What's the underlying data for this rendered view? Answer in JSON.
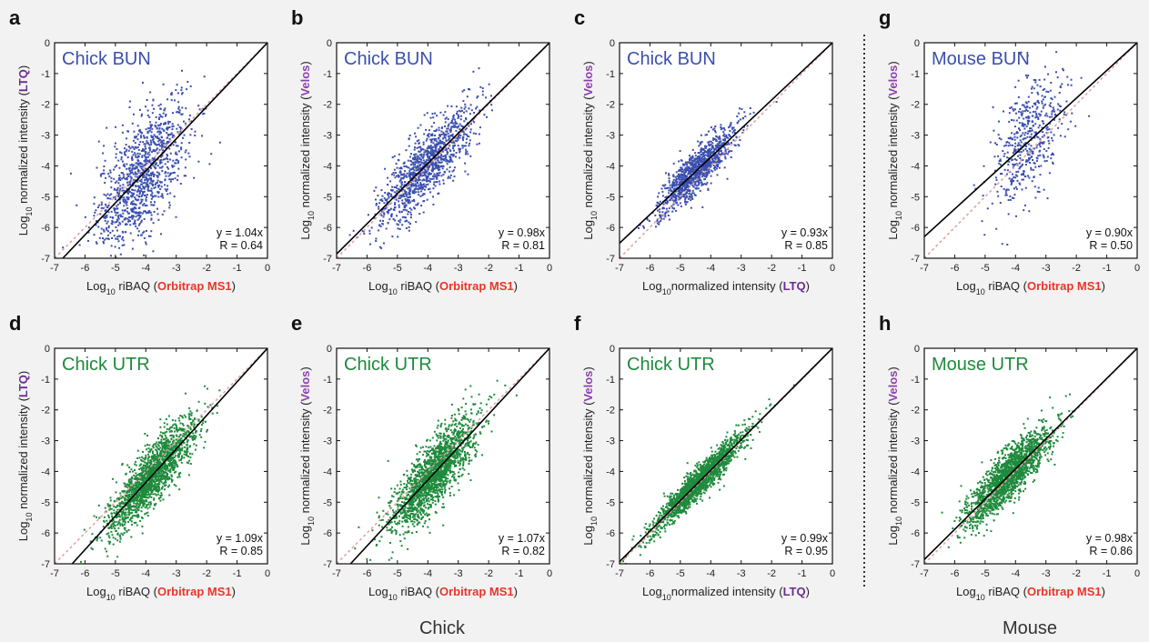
{
  "colors": {
    "blue": "#3b4fae",
    "green": "#1e8a3c",
    "orbitrap": "#e8362a",
    "velos": "#8e3fae",
    "ltq": "#6a2d8f",
    "fit_line": "#000000",
    "identity_line": "#e0a4a4"
  },
  "groups": [
    {
      "label": "Chick"
    },
    {
      "label": "Mouse"
    }
  ],
  "chart_data": [
    {
      "type": "scatter",
      "panel": "a",
      "title": "Chick BUN",
      "color": "blue",
      "xlabel": {
        "pre": "Log",
        "sub": "10",
        "mid": " riBAQ (",
        "hl": "Orbitrap MS1",
        "post": ")"
      },
      "ylabel": {
        "pre": "Log",
        "sub": "10",
        "mid": " normalized intensity (",
        "hl": "LTQ",
        "post": ")"
      },
      "xlim": [
        -7,
        0
      ],
      "ylim": [
        -7,
        0
      ],
      "x_ticks": [
        -7,
        -6,
        -5,
        -4,
        -3,
        -2,
        -1,
        0
      ],
      "y_ticks": [
        -7,
        -6,
        -5,
        -4,
        -3,
        -2,
        -1,
        0
      ],
      "fit_text": "y = 1.04x",
      "r_text": "R = 0.64",
      "slope": 1.04,
      "r": 0.64,
      "n_points": 1100,
      "x_mean": -4.1,
      "x_sd": 0.75
    },
    {
      "type": "scatter",
      "panel": "b",
      "title": "Chick BUN",
      "color": "blue",
      "xlabel": {
        "pre": "Log",
        "sub": "10",
        "mid": " riBAQ (",
        "hl": "Orbitrap MS1",
        "post": ")"
      },
      "ylabel": {
        "pre": "Log",
        "sub": "10",
        "mid": " normalized intensity (",
        "hl": "Velos",
        "post": ")"
      },
      "xlim": [
        -7,
        0
      ],
      "ylim": [
        -7,
        0
      ],
      "x_ticks": [
        -7,
        -6,
        -5,
        -4,
        -3,
        -2,
        -1,
        0
      ],
      "y_ticks": [
        -7,
        -6,
        -5,
        -4,
        -3,
        -2,
        -1,
        0
      ],
      "fit_text": "y = 0.98x",
      "r_text": "R = 0.81",
      "slope": 0.98,
      "r": 0.81,
      "n_points": 1100,
      "x_mean": -4.1,
      "x_sd": 0.8
    },
    {
      "type": "scatter",
      "panel": "c",
      "title": "Chick BUN",
      "color": "blue",
      "xlabel": {
        "pre": "Log",
        "sub": "10",
        "mid": "normalized intensity (",
        "hl": "LTQ",
        "post": ")"
      },
      "ylabel": {
        "pre": "Log",
        "sub": "10",
        "mid": " normalized intensity (",
        "hl": "Velos",
        "post": ")"
      },
      "xlim": [
        -7,
        0
      ],
      "ylim": [
        -7,
        0
      ],
      "x_ticks": [
        -7,
        -6,
        -5,
        -4,
        -3,
        -2,
        -1,
        0
      ],
      "y_ticks": [
        -7,
        -6,
        -5,
        -4,
        -3,
        -2,
        -1,
        0
      ],
      "fit_text": "y = 0.93x",
      "r_text": "R = 0.85",
      "slope": 0.93,
      "r": 0.85,
      "n_points": 1100,
      "x_mean": -4.5,
      "x_sd": 0.6
    },
    {
      "type": "scatter",
      "panel": "g",
      "title": "Mouse BUN",
      "color": "blue",
      "xlabel": {
        "pre": "Log",
        "sub": "10",
        "mid": " riBAQ (",
        "hl": "Orbitrap MS1",
        "post": ")"
      },
      "ylabel": {
        "pre": "Log",
        "sub": "10",
        "mid": " normalized intensity (",
        "hl": "Velos",
        "post": ")"
      },
      "xlim": [
        -7,
        0
      ],
      "ylim": [
        -7,
        0
      ],
      "x_ticks": [
        -7,
        -6,
        -5,
        -4,
        -3,
        -2,
        -1,
        0
      ],
      "y_ticks": [
        -7,
        -6,
        -5,
        -4,
        -3,
        -2,
        -1,
        0
      ],
      "fit_text": "y = 0.90x",
      "r_text": "R = 0.50",
      "slope": 0.9,
      "r": 0.5,
      "n_points": 500,
      "x_mean": -3.6,
      "x_sd": 0.6
    },
    {
      "type": "scatter",
      "panel": "d",
      "title": "Chick UTR",
      "color": "green",
      "xlabel": {
        "pre": "Log",
        "sub": "10",
        "mid": " riBAQ (",
        "hl": "Orbitrap MS1",
        "post": ")"
      },
      "ylabel": {
        "pre": "Log",
        "sub": "10",
        "mid": " normalized intensity (",
        "hl": "LTQ",
        "post": ")"
      },
      "xlim": [
        -7,
        0
      ],
      "ylim": [
        -7,
        0
      ],
      "x_ticks": [
        -7,
        -6,
        -5,
        -4,
        -3,
        -2,
        -1,
        0
      ],
      "y_ticks": [
        -7,
        -6,
        -5,
        -4,
        -3,
        -2,
        -1,
        0
      ],
      "fit_text": "y = 1.09x",
      "r_text": "R = 0.85",
      "slope": 1.09,
      "r": 0.85,
      "n_points": 1800,
      "x_mean": -3.8,
      "x_sd": 0.7
    },
    {
      "type": "scatter",
      "panel": "e",
      "title": "Chick UTR",
      "color": "green",
      "xlabel": {
        "pre": "Log",
        "sub": "10",
        "mid": " riBAQ (",
        "hl": "Orbitrap MS1",
        "post": ")"
      },
      "ylabel": {
        "pre": "Log",
        "sub": "10",
        "mid": " normalized intensity (",
        "hl": "Velos",
        "post": ")"
      },
      "xlim": [
        -7,
        0
      ],
      "ylim": [
        -7,
        0
      ],
      "x_ticks": [
        -7,
        -6,
        -5,
        -4,
        -3,
        -2,
        -1,
        0
      ],
      "y_ticks": [
        -7,
        -6,
        -5,
        -4,
        -3,
        -2,
        -1,
        0
      ],
      "fit_text": "y = 1.07x",
      "r_text": "R = 0.82",
      "slope": 1.07,
      "r": 0.82,
      "n_points": 1800,
      "x_mean": -3.8,
      "x_sd": 0.7
    },
    {
      "type": "scatter",
      "panel": "f",
      "title": "Chick UTR",
      "color": "green",
      "xlabel": {
        "pre": "Log",
        "sub": "10",
        "mid": "normalized intensity (",
        "hl": "LTQ",
        "post": ")"
      },
      "ylabel": {
        "pre": "Log",
        "sub": "10",
        "mid": " normalized intensity (",
        "hl": "Velos",
        "post": ")"
      },
      "xlim": [
        -7,
        0
      ],
      "ylim": [
        -7,
        0
      ],
      "x_ticks": [
        -7,
        -6,
        -5,
        -4,
        -3,
        -2,
        -1,
        0
      ],
      "y_ticks": [
        -7,
        -6,
        -5,
        -4,
        -3,
        -2,
        -1,
        0
      ],
      "fit_text": "y = 0.99x",
      "r_text": "R = 0.95",
      "slope": 0.99,
      "r": 0.95,
      "n_points": 1800,
      "x_mean": -4.4,
      "x_sd": 0.75
    },
    {
      "type": "scatter",
      "panel": "h",
      "title": "Mouse UTR",
      "color": "green",
      "xlabel": {
        "pre": "Log",
        "sub": "10",
        "mid": " riBAQ (",
        "hl": "Orbitrap MS1",
        "post": ")"
      },
      "ylabel": {
        "pre": "Log",
        "sub": "10",
        "mid": " normalized intensity (",
        "hl": "Velos",
        "post": ")"
      },
      "xlim": [
        -7,
        0
      ],
      "ylim": [
        -7,
        0
      ],
      "x_ticks": [
        -7,
        -6,
        -5,
        -4,
        -3,
        -2,
        -1,
        0
      ],
      "y_ticks": [
        -7,
        -6,
        -5,
        -4,
        -3,
        -2,
        -1,
        0
      ],
      "fit_text": "y = 0.98x",
      "r_text": "R = 0.86",
      "slope": 0.98,
      "r": 0.86,
      "n_points": 1800,
      "x_mean": -4.2,
      "x_sd": 0.7
    }
  ]
}
